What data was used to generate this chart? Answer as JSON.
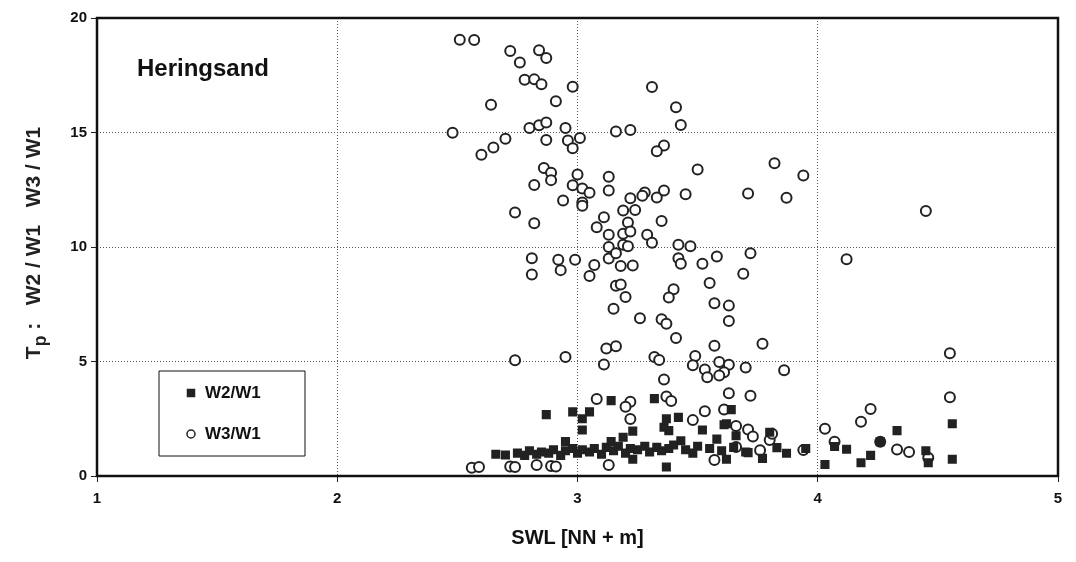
{
  "chart_data": {
    "type": "scatter",
    "xlabel": "SWL [NN + m]",
    "ylabel": "T$_{p}$ :   W2 / W1   W3 / W1",
    "annotations": [
      "Heringsand"
    ],
    "xlim": [
      1,
      5
    ],
    "xticks": [
      1,
      2,
      3,
      4,
      5
    ],
    "ylim": [
      0,
      20
    ],
    "yticks": [
      0,
      5,
      10,
      15,
      20
    ],
    "grid": true,
    "legend": "bottom left",
    "series": [
      {
        "name": "W2/W1",
        "color": "#222222",
        "marker": "square",
        "x": [
          2.66,
          2.7,
          2.87,
          2.98,
          3.02,
          3.05,
          3.02,
          3.14,
          3.32,
          3.37,
          3.42,
          3.36,
          3.38,
          3.23,
          3.19,
          2.95,
          3.14,
          3.43,
          3.52,
          3.58,
          3.64,
          3.61,
          3.66,
          3.37,
          3.23,
          3.62,
          3.8,
          3.83,
          3.87,
          3.77,
          3.71,
          3.95,
          4.03,
          4.07,
          4.12,
          4.18,
          4.22,
          4.26,
          4.33,
          4.45,
          4.46,
          4.56,
          4.56,
          3.62,
          2.75,
          2.78,
          2.8,
          2.83,
          2.85,
          2.88,
          2.9,
          2.93,
          2.95,
          2.98,
          3.0,
          3.02,
          3.05,
          3.07,
          3.1,
          3.12,
          3.15,
          3.17,
          3.2,
          3.22,
          3.25,
          3.28,
          3.3,
          3.33,
          3.35,
          3.38,
          3.4,
          3.45,
          3.48,
          3.5,
          3.55,
          3.6,
          3.65,
          3.7
        ],
        "values": [
          0.95,
          0.92,
          2.68,
          2.8,
          2.5,
          2.8,
          2.01,
          3.29,
          3.38,
          2.5,
          2.56,
          2.13,
          1.98,
          1.96,
          1.69,
          1.51,
          1.51,
          1.54,
          2.01,
          1.61,
          2.9,
          2.24,
          1.76,
          0.39,
          0.73,
          2.28,
          1.91,
          1.24,
          0.99,
          0.77,
          1.02,
          1.2,
          0.5,
          1.29,
          1.17,
          0.58,
          0.9,
          1.5,
          1.98,
          1.1,
          0.58,
          2.28,
          0.73,
          0.73,
          1.0,
          0.9,
          1.1,
          0.95,
          1.05,
          1.0,
          1.15,
          0.9,
          1.1,
          1.2,
          1.0,
          1.15,
          1.05,
          1.2,
          0.95,
          1.25,
          1.1,
          1.3,
          1.0,
          1.2,
          1.15,
          1.3,
          1.05,
          1.25,
          1.1,
          1.2,
          1.35,
          1.15,
          1.0,
          1.3,
          1.2,
          1.1,
          1.25,
          1.05
        ]
      },
      {
        "name": "W3/W1",
        "color": "#222222",
        "marker": "circle",
        "x": [
          2.51,
          2.57,
          2.72,
          2.84,
          2.87,
          2.76,
          2.78,
          2.82,
          2.85,
          2.98,
          3.31,
          2.64,
          2.91,
          3.41,
          3.43,
          2.48,
          2.8,
          2.84,
          2.87,
          2.95,
          3.16,
          3.22,
          2.7,
          2.65,
          2.6,
          2.87,
          2.96,
          3.01,
          2.98,
          3.36,
          3.33,
          3.5,
          2.86,
          2.89,
          2.89,
          3.0,
          3.13,
          2.82,
          2.98,
          3.02,
          3.05,
          3.13,
          2.94,
          3.02,
          3.02,
          3.22,
          3.28,
          3.27,
          3.33,
          3.36,
          3.45,
          2.74,
          2.82,
          3.19,
          3.24,
          3.21,
          3.11,
          3.35,
          3.08,
          3.13,
          3.19,
          3.22,
          3.29,
          3.31,
          3.42,
          3.47,
          3.13,
          3.19,
          3.21,
          2.81,
          2.81,
          2.92,
          2.93,
          2.99,
          3.07,
          3.05,
          3.13,
          3.16,
          3.18,
          3.23,
          3.42,
          3.43,
          3.52,
          3.58,
          3.16,
          3.18,
          3.2,
          3.4,
          3.38,
          3.55,
          3.15,
          3.26,
          3.35,
          3.37,
          3.41,
          3.57,
          3.63,
          3.63,
          3.57,
          3.12,
          3.16,
          3.11,
          2.74,
          2.95,
          3.32,
          3.34,
          3.36,
          3.49,
          3.48,
          3.53,
          3.54,
          3.59,
          3.63,
          3.61,
          3.59,
          3.63,
          3.08,
          3.37,
          3.39,
          3.22,
          3.2,
          3.22,
          3.48,
          3.53,
          3.61,
          3.66,
          3.66,
          3.57,
          3.13,
          2.56,
          2.59,
          2.72,
          2.74,
          2.83,
          2.89,
          2.91,
          3.82,
          3.94,
          3.71,
          3.87,
          4.45,
          4.12,
          3.72,
          3.69,
          3.77,
          3.7,
          3.86,
          3.72,
          4.55,
          4.55,
          4.22,
          4.18,
          4.03,
          4.07,
          4.26,
          4.33,
          4.38,
          4.46,
          3.94,
          3.71,
          3.73,
          3.8,
          3.81,
          3.76
        ],
        "values": [
          19.05,
          19.04,
          18.56,
          18.59,
          18.25,
          18.06,
          17.3,
          17.32,
          17.11,
          17.0,
          16.99,
          16.21,
          16.36,
          16.1,
          15.33,
          14.99,
          15.2,
          15.32,
          15.44,
          15.2,
          15.04,
          15.11,
          14.73,
          14.34,
          14.03,
          14.67,
          14.65,
          14.76,
          14.31,
          14.43,
          14.18,
          13.38,
          13.45,
          13.24,
          12.92,
          13.17,
          13.07,
          12.71,
          12.7,
          12.55,
          12.37,
          12.47,
          12.03,
          11.94,
          11.8,
          12.13,
          12.38,
          12.24,
          12.16,
          12.47,
          12.3,
          11.51,
          11.04,
          11.59,
          11.62,
          11.07,
          11.3,
          11.14,
          10.86,
          10.53,
          10.58,
          10.68,
          10.53,
          10.19,
          10.1,
          10.03,
          10.0,
          10.1,
          10.03,
          9.51,
          8.8,
          9.44,
          8.99,
          9.44,
          9.21,
          8.73,
          9.5,
          9.73,
          9.17,
          9.19,
          9.51,
          9.27,
          9.27,
          9.59,
          8.31,
          8.36,
          7.82,
          8.16,
          7.79,
          8.43,
          7.3,
          6.89,
          6.84,
          6.65,
          6.03,
          7.54,
          7.44,
          6.77,
          5.69,
          5.57,
          5.67,
          4.87,
          5.05,
          5.2,
          5.2,
          5.07,
          4.21,
          5.24,
          4.84,
          4.65,
          4.31,
          4.98,
          4.86,
          4.53,
          4.39,
          3.61,
          3.36,
          3.47,
          3.28,
          3.24,
          3.02,
          2.49,
          2.44,
          2.83,
          2.9,
          2.18,
          1.27,
          0.7,
          0.48,
          0.36,
          0.39,
          0.41,
          0.39,
          0.48,
          0.44,
          0.41,
          13.66,
          13.12,
          12.34,
          12.15,
          11.57,
          9.47,
          9.73,
          8.83,
          5.78,
          4.74,
          4.62,
          3.5,
          5.36,
          3.44,
          2.93,
          2.37,
          2.06,
          1.5,
          1.5,
          1.16,
          1.05,
          0.8,
          1.13,
          2.03,
          1.72,
          1.57,
          1.84,
          1.12
        ]
      }
    ]
  }
}
